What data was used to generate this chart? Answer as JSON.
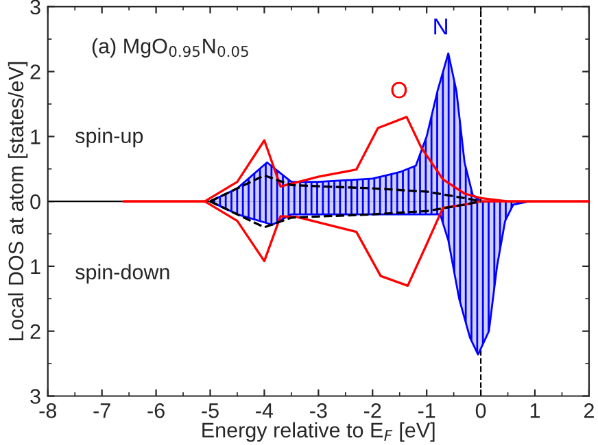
{
  "chart_data": {
    "type": "line",
    "xlabel": "Energy relative to E$_{F}$ [eV]",
    "ylabel": "Local DOS at atom [states/eV]",
    "annotations": [
      "(a) MgO$_{0.95}$N$_{0.05}$",
      "spin-up",
      "spin-down"
    ],
    "series": [
      {
        "name": "N",
        "type": "area",
        "color": "#0000ff",
        "x": [
          -5,
          -4.5,
          -3.95,
          -3.5,
          -3,
          -2,
          -1.5,
          -1.2,
          -1.0,
          -0.8,
          -0.6,
          -0.45,
          -0.3,
          -0.15,
          0,
          0.3
        ],
        "values": [
          0,
          0.2,
          0.6,
          0.3,
          0.3,
          0.35,
          0.45,
          0.55,
          1.0,
          1.7,
          2.28,
          1.7,
          0.6,
          0.1,
          0,
          0
        ]
      },
      {
        "type": "area",
        "color": "#0000ff",
        "x": [
          -5,
          -4.5,
          -3.85,
          -3.5,
          -3,
          -2,
          -1.0,
          -0.75,
          -0.6,
          -0.4,
          -0.2,
          -0.05,
          0.15,
          0.3,
          0.45,
          0.6,
          0.9
        ],
        "values": [
          0,
          -0.2,
          -0.36,
          -0.2,
          -0.2,
          -0.2,
          -0.2,
          -0.2,
          -0.6,
          -1.5,
          -2.1,
          -2.36,
          -2.0,
          -1.0,
          -0.3,
          -0.05,
          0
        ]
      },
      {
        "name": "O",
        "color": "#ff0000",
        "x": [
          -6.6,
          -5.1,
          -4.5,
          -4.0,
          -3.7,
          -3.0,
          -2.3,
          -1.9,
          -1.37,
          -1.1,
          -0.7,
          -0.3,
          0,
          0.5,
          2
        ],
        "values": [
          0,
          0,
          0.3,
          0.94,
          0.23,
          0.38,
          0.49,
          1.13,
          1.3,
          0.83,
          0.34,
          0.12,
          0.05,
          0,
          0
        ]
      },
      {
        "color": "#ff0000",
        "x": [
          -6.6,
          -5.1,
          -4.5,
          -4.0,
          -3.7,
          -3.4,
          -2.3,
          -1.85,
          -1.35,
          -1.0,
          -0.7,
          -0.3,
          0,
          0.5,
          2
        ],
        "values": [
          0,
          0,
          -0.3,
          -0.92,
          -0.23,
          -0.24,
          -0.47,
          -1.15,
          -1.3,
          -0.66,
          -0.1,
          -0.05,
          0,
          0,
          0
        ]
      },
      {
        "color": "#000000",
        "line_style": "dashed",
        "x": [
          -5,
          -4,
          -3.5,
          -2,
          -1,
          -0.3,
          0
        ],
        "values": [
          0,
          0.4,
          0.25,
          0.2,
          0.15,
          0.05,
          0
        ]
      },
      {
        "color": "#000000",
        "line_style": "dashed",
        "x": [
          -5,
          -4,
          -3.5,
          -2,
          -1,
          -0.3,
          0
        ],
        "values": [
          0,
          -0.4,
          -0.25,
          -0.2,
          -0.15,
          -0.05,
          0
        ]
      }
    ],
    "ref_lines": [
      {
        "axis": "x",
        "value": 0,
        "color": "#000000",
        "line_style": "dashed"
      },
      {
        "axis": "y",
        "value": 0,
        "color": "#000000",
        "line_style": "solid"
      }
    ],
    "xlim": [
      -8,
      2
    ],
    "xticks": [
      -8,
      -7,
      -6,
      -5,
      -4,
      -3,
      -2,
      -1,
      0,
      1,
      2
    ],
    "ylim": [
      -3,
      3
    ],
    "yticks": [
      {
        "value": -3,
        "label": "3"
      },
      {
        "value": -2,
        "label": "2"
      },
      {
        "value": -1,
        "label": "1"
      },
      0,
      1,
      2,
      3
    ],
    "grid": false,
    "legend": false
  }
}
